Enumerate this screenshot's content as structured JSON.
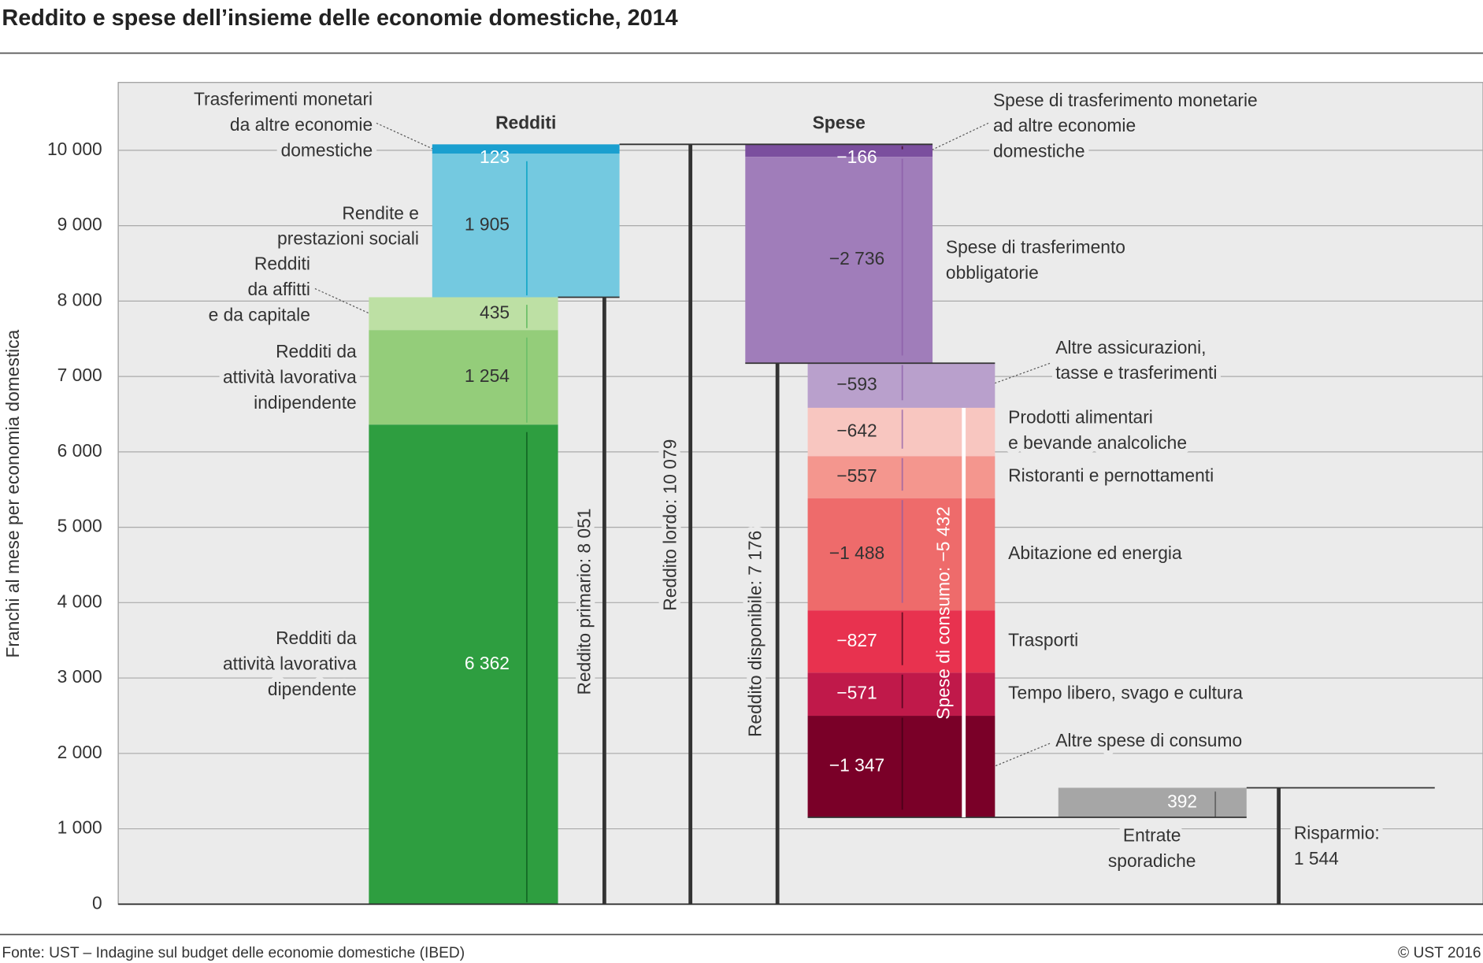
{
  "chart_data": {
    "type": "waterfall",
    "title": "Reddito e spese dell’insieme delle economie domestiche, 2014",
    "y_label": "Franchi al mese per economia domestica",
    "ylim": [
      0,
      10900
    ],
    "yticks": [
      0,
      {
        "value": 1000,
        "label": "1 000"
      },
      {
        "value": 2000,
        "label": "2 000"
      },
      {
        "value": 3000,
        "label": "3 000"
      },
      {
        "value": 4000,
        "label": "4 000"
      },
      {
        "value": 5000,
        "label": "5 000"
      },
      {
        "value": 6000,
        "label": "6 000"
      },
      {
        "value": 7000,
        "label": "7 000"
      },
      {
        "value": 8000,
        "label": "8 000"
      },
      {
        "value": 9000,
        "label": "9 000"
      },
      {
        "value": 10000,
        "label": "10 000"
      }
    ],
    "grid": true,
    "income_header": "Redditi",
    "expense_header": "Spese",
    "incomes": [
      {
        "label": [
          "Redditi da",
          "attività lavorativa",
          "dipendente"
        ],
        "value": 6362,
        "value_label": "6 362",
        "color": "#2e9e40"
      },
      {
        "label": [
          "Redditi da",
          "attività lavorativa",
          "indipendente"
        ],
        "value": 1254,
        "value_label": "1 254",
        "color": "#94cd7a"
      },
      {
        "label": [
          "Redditi",
          "da affitti",
          "e da capitale"
        ],
        "value": 435,
        "value_label": "435",
        "color": "#bde0a4"
      },
      {
        "label": [
          "Rendite e",
          "prestazioni sociali"
        ],
        "value": 1905,
        "value_label": "1 905",
        "color": "#74c9e0"
      },
      {
        "label": [
          "Trasferimenti monetari",
          "da altre economie",
          "domestiche"
        ],
        "value": 123,
        "value_label": "123",
        "color": "#1a9fcf"
      }
    ],
    "expenses": [
      {
        "label": [
          "Spese di trasferimento monetarie",
          "ad altre economie",
          "domestiche"
        ],
        "value": -166,
        "value_label": "−166",
        "color": "#7b4f9e"
      },
      {
        "label": [
          "Spese di trasferimento",
          "obbligatorie"
        ],
        "value": -2736,
        "value_label": "−2 736",
        "color": "#a07dba"
      },
      {
        "label": [
          "Altre assicurazioni,",
          "tasse e trasferimenti"
        ],
        "value": -593,
        "value_label": "−593",
        "color": "#b9a0cc"
      },
      {
        "label": [
          "Prodotti alimentari",
          "e bevande analcoliche"
        ],
        "value": -642,
        "value_label": "−642",
        "color": "#f8c6c0"
      },
      {
        "label": [
          "Ristoranti e pernottamenti"
        ],
        "value": -557,
        "value_label": "−557",
        "color": "#f4968e"
      },
      {
        "label": [
          "Abitazione ed energia"
        ],
        "value": -1488,
        "value_label": "−1 488",
        "color": "#ee6b6b"
      },
      {
        "label": [
          "Trasporti"
        ],
        "value": -827,
        "value_label": "−827",
        "color": "#e8324f"
      },
      {
        "label": [
          "Tempo libero, svago e cultura"
        ],
        "value": -571,
        "value_label": "−571",
        "color": "#c0194a"
      },
      {
        "label": [
          "Altre spese di consumo"
        ],
        "value": -1347,
        "value_label": "−1 347",
        "color": "#7a0028"
      }
    ],
    "sporadic": {
      "label": [
        "Entrate",
        "sporadiche"
      ],
      "value": 392,
      "value_label": "392",
      "color": "#a6a6a6"
    },
    "totals": [
      {
        "label": "Reddito primario: 8 051",
        "value": 8051
      },
      {
        "label": "Reddito lordo: 10 079",
        "value": 10079
      },
      {
        "label": "Reddito disponibile: 7 176",
        "value": 7176
      },
      {
        "label": "Spese di consumo: −5 432",
        "value": -5432
      },
      {
        "label": [
          "Risparmio:",
          "1 544"
        ],
        "value": 1544
      }
    ]
  },
  "footer": {
    "source": "Fonte: UST – Indagine sul budget delle economie domestiche (IBED)",
    "copyright": "© UST 2016"
  }
}
